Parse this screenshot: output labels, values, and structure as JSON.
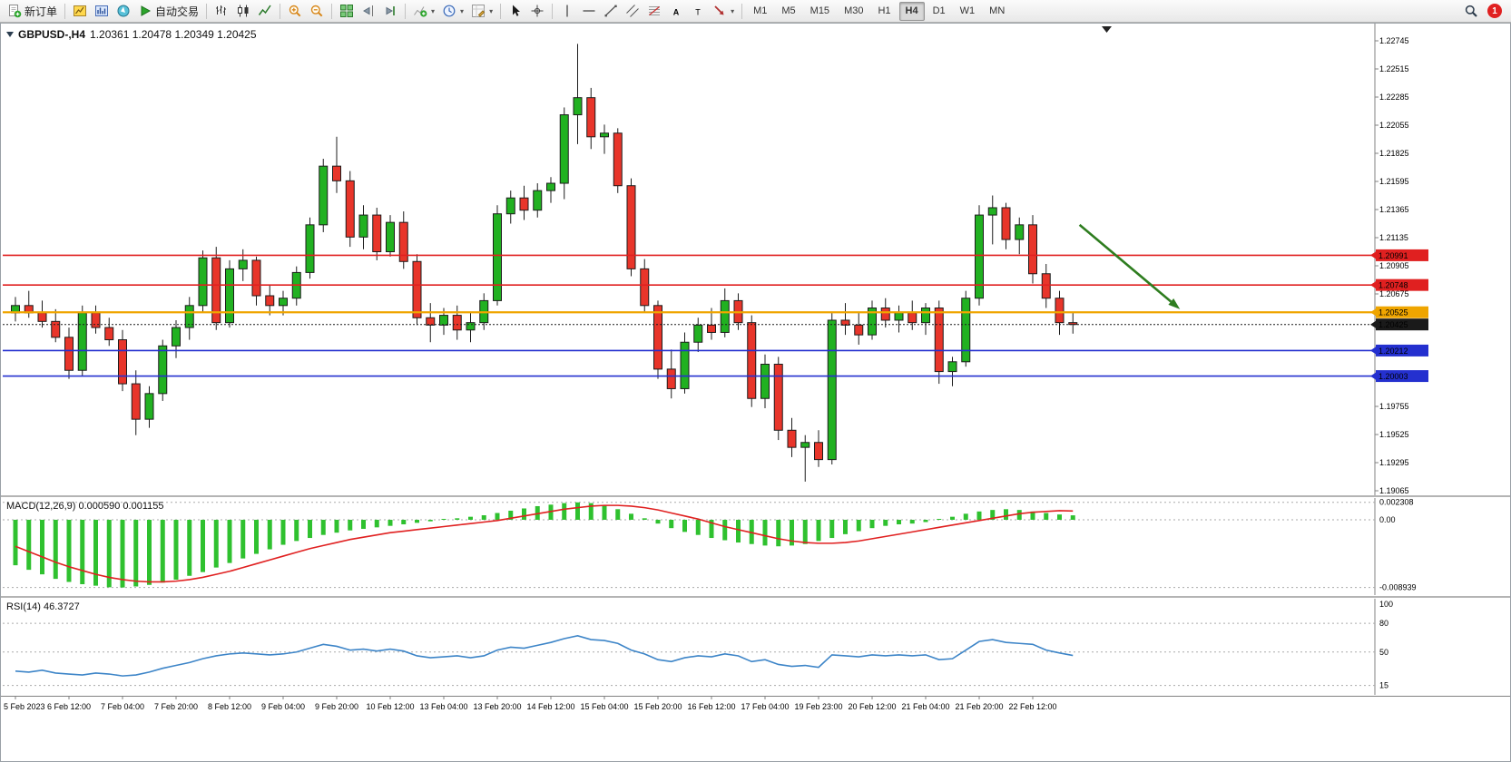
{
  "toolbar": {
    "groups": [
      [
        {
          "name": "new-order-button",
          "icon": "doc-new",
          "label": "新订单"
        }
      ],
      [
        {
          "name": "new-chart-button",
          "icon": "chart-new"
        },
        {
          "name": "profiles-button",
          "icon": "profiles"
        },
        {
          "name": "navigator-button",
          "icon": "navigator"
        },
        {
          "name": "auto-trading-button",
          "icon": "play",
          "label": "自动交易"
        }
      ],
      [
        {
          "name": "bar-chart-button",
          "icon": "bars"
        },
        {
          "name": "candlestick-chart-button",
          "icon": "candles"
        },
        {
          "name": "line-chart-button",
          "icon": "linechart"
        }
      ],
      [
        {
          "name": "zoom-in-button",
          "icon": "zoom-in"
        },
        {
          "name": "zoom-out-button",
          "icon": "zoom-out"
        }
      ],
      [
        {
          "name": "tile-windows-button",
          "icon": "tile"
        },
        {
          "name": "chart-shift-button",
          "icon": "shift"
        },
        {
          "name": "auto-scroll-button",
          "icon": "autoscroll"
        }
      ],
      [
        {
          "name": "indicators-button",
          "icon": "indicators",
          "dropdown": true
        },
        {
          "name": "periods-button",
          "icon": "periods",
          "dropdown": true
        },
        {
          "name": "templates-button",
          "icon": "templates",
          "dropdown": true
        }
      ],
      [
        {
          "name": "cursor-button",
          "icon": "cursor"
        },
        {
          "name": "crosshair-button",
          "icon": "crosshair"
        }
      ],
      [
        {
          "name": "vertical-line-button",
          "icon": "vline"
        },
        {
          "name": "horizontal-line-button",
          "icon": "hline"
        },
        {
          "name": "trendline-button",
          "icon": "trendline"
        },
        {
          "name": "channel-button",
          "icon": "channel"
        },
        {
          "name": "fibonacci-button",
          "icon": "fibo"
        },
        {
          "name": "text-button",
          "icon": "textA"
        },
        {
          "name": "label-button",
          "icon": "labelT"
        },
        {
          "name": "arrows-button",
          "icon": "arrows",
          "dropdown": true
        }
      ]
    ],
    "timeframes": {
      "options": [
        "M1",
        "M5",
        "M15",
        "M30",
        "H1",
        "H4",
        "D1",
        "W1",
        "MN"
      ],
      "active": "H4"
    },
    "right": {
      "notification_count": "1"
    }
  },
  "chart_data": {
    "type": "candlestick",
    "symbol_title": "GBPUSD-,H4",
    "ohlc_text": "1.20361 1.20478 1.20349 1.20425",
    "colors": {
      "up_fill": "#21b121",
      "down_fill": "#e8352a",
      "candle_outline": "#1c1c1c",
      "macd_histogram": "#2fc12f",
      "macd_signal": "#e02020",
      "rsi_line": "#3d85c8",
      "scale_line": "#808080",
      "arrow": "#2e7d1f"
    },
    "price_axis": {
      "max": 1.22745,
      "min": 1.19065,
      "labels": [
        "1.22745",
        "1.22515",
        "1.22285",
        "1.22055",
        "1.21825",
        "1.21595",
        "1.21365",
        "1.21135",
        "1.20905",
        "1.20675",
        "1.20445",
        "1.20215",
        "1.19985",
        "1.19755",
        "1.19525",
        "1.19295",
        "1.19065"
      ]
    },
    "time_axis": {
      "step_bars": 4,
      "labels": [
        "5 Feb 2023",
        "6 Feb 12:00",
        "7 Feb 04:00",
        "7 Feb 20:00",
        "8 Feb 12:00",
        "9 Feb 04:00",
        "9 Feb 20:00",
        "10 Feb 12:00",
        "13 Feb 04:00",
        "13 Feb 20:00",
        "14 Feb 12:00",
        "15 Feb 04:00",
        "15 Feb 20:00",
        "16 Feb 12:00",
        "17 Feb 04:00",
        "19 Feb 23:00",
        "20 Feb 12:00",
        "21 Feb 04:00",
        "21 Feb 20:00",
        "22 Feb 12:00"
      ]
    },
    "hlines": [
      {
        "name": "resistance-line-1",
        "price": 1.20991,
        "label": "1.20991",
        "color": "#e02020",
        "width": 1.6
      },
      {
        "name": "resistance-line-2",
        "price": 1.20748,
        "label": "1.20748",
        "color": "#e02020",
        "width": 1.6
      },
      {
        "name": "pivot-line",
        "price": 1.20525,
        "label": "1.20525",
        "color": "#efa500",
        "width": 2.2
      },
      {
        "name": "bid-price-line",
        "price": 1.20425,
        "label": "1.20425",
        "color": "#1a1a1a",
        "width": 1,
        "dashed": true
      },
      {
        "name": "support-line-1",
        "price": 1.20212,
        "label": "1.20212",
        "color": "#2430cf",
        "width": 1.6
      },
      {
        "name": "support-line-2",
        "price": 1.20003,
        "label": "1.20003",
        "color": "#2430cf",
        "width": 1.6
      }
    ],
    "trend_arrow": {
      "from_bar": 79.5,
      "from_price": 1.2124,
      "to_bar": 87,
      "to_price": 1.2055
    },
    "candles": [
      [
        1.2052,
        1.2065,
        1.2045,
        1.2058
      ],
      [
        1.2058,
        1.207,
        1.2048,
        1.2052
      ],
      [
        1.2052,
        1.2062,
        1.204,
        1.2045
      ],
      [
        1.2045,
        1.2055,
        1.2028,
        1.2032
      ],
      [
        1.2032,
        1.204,
        1.1998,
        1.2005
      ],
      [
        1.2005,
        1.2058,
        1.2,
        1.2052
      ],
      [
        1.2052,
        1.2058,
        1.2035,
        1.204
      ],
      [
        1.204,
        1.2048,
        1.2025,
        1.203
      ],
      [
        1.203,
        1.2038,
        1.1988,
        1.1994
      ],
      [
        1.1994,
        1.2005,
        1.1952,
        1.1965
      ],
      [
        1.1965,
        1.1992,
        1.1958,
        1.1986
      ],
      [
        1.1986,
        1.203,
        1.198,
        1.2025
      ],
      [
        1.2025,
        1.2046,
        1.2015,
        1.204
      ],
      [
        1.204,
        1.2065,
        1.203,
        1.2058
      ],
      [
        1.2058,
        1.2103,
        1.2052,
        1.2097
      ],
      [
        1.2097,
        1.2106,
        1.2038,
        1.2044
      ],
      [
        1.2044,
        1.2095,
        1.204,
        1.2088
      ],
      [
        1.2088,
        1.2104,
        1.2078,
        1.2095
      ],
      [
        1.2095,
        1.2098,
        1.2058,
        1.2066
      ],
      [
        1.2066,
        1.2075,
        1.205,
        1.2058
      ],
      [
        1.2058,
        1.207,
        1.205,
        1.2064
      ],
      [
        1.2064,
        1.209,
        1.2058,
        1.2085
      ],
      [
        1.2085,
        1.213,
        1.208,
        1.2124
      ],
      [
        1.2124,
        1.2178,
        1.2118,
        1.2172
      ],
      [
        1.2172,
        1.2196,
        1.215,
        1.216
      ],
      [
        1.216,
        1.2168,
        1.2106,
        1.2114
      ],
      [
        1.2114,
        1.214,
        1.2104,
        1.2132
      ],
      [
        1.2132,
        1.2138,
        1.2095,
        1.2102
      ],
      [
        1.2102,
        1.2132,
        1.2098,
        1.2126
      ],
      [
        1.2126,
        1.2135,
        1.2088,
        1.2094
      ],
      [
        1.2094,
        1.21,
        1.2042,
        1.2048
      ],
      [
        1.2048,
        1.206,
        1.2028,
        1.2042
      ],
      [
        1.2042,
        1.2056,
        1.2034,
        1.205
      ],
      [
        1.205,
        1.2058,
        1.203,
        1.2038
      ],
      [
        1.2038,
        1.2052,
        1.2028,
        1.2044
      ],
      [
        1.2044,
        1.2068,
        1.2038,
        1.2062
      ],
      [
        1.2062,
        1.214,
        1.2058,
        1.2133
      ],
      [
        1.2133,
        1.2152,
        1.2125,
        1.2146
      ],
      [
        1.2146,
        1.2156,
        1.2128,
        1.2136
      ],
      [
        1.2136,
        1.2158,
        1.213,
        1.2152
      ],
      [
        1.2152,
        1.2163,
        1.2142,
        1.2158
      ],
      [
        1.2158,
        1.222,
        1.2145,
        1.2214
      ],
      [
        1.2214,
        1.2272,
        1.219,
        1.2228
      ],
      [
        1.2228,
        1.2236,
        1.2186,
        1.2196
      ],
      [
        1.2196,
        1.2206,
        1.2182,
        1.2199
      ],
      [
        1.2199,
        1.2203,
        1.215,
        1.2156
      ],
      [
        1.2156,
        1.2162,
        1.2082,
        1.2088
      ],
      [
        1.2088,
        1.2096,
        1.2052,
        1.2058
      ],
      [
        1.2058,
        1.2062,
        1.1998,
        1.2006
      ],
      [
        1.2006,
        1.2022,
        1.1982,
        1.199
      ],
      [
        1.199,
        1.2036,
        1.1986,
        1.2028
      ],
      [
        1.2028,
        1.2048,
        1.202,
        1.2042
      ],
      [
        1.2042,
        1.2056,
        1.203,
        1.2036
      ],
      [
        1.2036,
        1.2072,
        1.2032,
        1.2062
      ],
      [
        1.2062,
        1.2068,
        1.2038,
        1.2044
      ],
      [
        1.2044,
        1.205,
        1.1975,
        1.1982
      ],
      [
        1.1982,
        1.2018,
        1.1974,
        1.201
      ],
      [
        1.201,
        1.2016,
        1.1948,
        1.1956
      ],
      [
        1.1956,
        1.1966,
        1.1934,
        1.1942
      ],
      [
        1.1942,
        1.1952,
        1.1914,
        1.1946
      ],
      [
        1.1946,
        1.1956,
        1.1926,
        1.1932
      ],
      [
        1.1932,
        1.2052,
        1.1928,
        1.2046
      ],
      [
        1.2046,
        1.206,
        1.2034,
        1.2042
      ],
      [
        1.2042,
        1.2052,
        1.2026,
        1.2034
      ],
      [
        1.2034,
        1.2062,
        1.203,
        1.2056
      ],
      [
        1.2056,
        1.2064,
        1.204,
        1.2046
      ],
      [
        1.2046,
        1.2058,
        1.2036,
        1.2052
      ],
      [
        1.2052,
        1.2062,
        1.2038,
        1.2044
      ],
      [
        1.2044,
        1.206,
        1.2034,
        1.2056
      ],
      [
        1.2056,
        1.2062,
        1.1994,
        1.2004
      ],
      [
        1.2004,
        1.2016,
        1.1992,
        1.2012
      ],
      [
        1.2012,
        1.207,
        1.2008,
        1.2064
      ],
      [
        1.2064,
        1.214,
        1.2058,
        1.2132
      ],
      [
        1.2132,
        1.2148,
        1.2108,
        1.2138
      ],
      [
        1.2138,
        1.2142,
        1.2104,
        1.2112
      ],
      [
        1.2112,
        1.213,
        1.21,
        1.2124
      ],
      [
        1.2124,
        1.2132,
        1.2076,
        1.2084
      ],
      [
        1.2084,
        1.2092,
        1.2056,
        1.2064
      ],
      [
        1.2064,
        1.207,
        1.2034,
        1.2044
      ],
      [
        1.2044,
        1.2052,
        1.2035,
        1.20425
      ]
    ],
    "macd": {
      "title": "MACD(12,26,9) 0.000590 0.001155",
      "scale": [
        {
          "label": "0.002308",
          "value": 0.002308
        },
        {
          "label": "0.00",
          "value": 0
        },
        {
          "label": "-0.008939",
          "value": -0.008939
        }
      ],
      "histogram": [
        -0.006,
        -0.0066,
        -0.0072,
        -0.0078,
        -0.0082,
        -0.0085,
        -0.0087,
        -0.0089,
        -0.00894,
        -0.0088,
        -0.0086,
        -0.0083,
        -0.0079,
        -0.0074,
        -0.0069,
        -0.0063,
        -0.0057,
        -0.0051,
        -0.0045,
        -0.0039,
        -0.0033,
        -0.0028,
        -0.0024,
        -0.002,
        -0.0017,
        -0.0014,
        -0.0012,
        -0.001,
        -0.0008,
        -0.0006,
        -0.0004,
        -0.0002,
        0.0,
        0.0002,
        0.0004,
        0.0006,
        0.0009,
        0.0012,
        0.0015,
        0.0018,
        0.002,
        0.0022,
        0.0023,
        0.0022,
        0.0019,
        0.0014,
        0.0008,
        0.0002,
        -0.0005,
        -0.0011,
        -0.0016,
        -0.002,
        -0.0024,
        -0.0027,
        -0.003,
        -0.0032,
        -0.0034,
        -0.0035,
        -0.0034,
        -0.0032,
        -0.0028,
        -0.0024,
        -0.0019,
        -0.0015,
        -0.0011,
        -0.0008,
        -0.0006,
        -0.0005,
        -0.0003,
        0.0,
        0.0004,
        0.0008,
        0.0011,
        0.0013,
        0.0014,
        0.0013,
        0.0011,
        0.0009,
        0.0007,
        0.00059
      ],
      "signal": [
        -0.0035,
        -0.0042,
        -0.0049,
        -0.0056,
        -0.0062,
        -0.0067,
        -0.0072,
        -0.0076,
        -0.0079,
        -0.0081,
        -0.0082,
        -0.0082,
        -0.0081,
        -0.0079,
        -0.0076,
        -0.0072,
        -0.0068,
        -0.0063,
        -0.0058,
        -0.0053,
        -0.0048,
        -0.0043,
        -0.0038,
        -0.0034,
        -0.003,
        -0.0026,
        -0.0023,
        -0.002,
        -0.0017,
        -0.0015,
        -0.0013,
        -0.0011,
        -0.0009,
        -0.0007,
        -0.0005,
        -0.0003,
        -0.0001,
        0.0002,
        0.0005,
        0.0008,
        0.0011,
        0.0014,
        0.0016,
        0.0018,
        0.0019,
        0.0019,
        0.0018,
        0.0016,
        0.0013,
        0.0009,
        0.0005,
        0.0001,
        -0.0004,
        -0.0009,
        -0.0013,
        -0.0017,
        -0.0021,
        -0.0025,
        -0.0028,
        -0.003,
        -0.0031,
        -0.0031,
        -0.003,
        -0.0028,
        -0.0025,
        -0.0022,
        -0.0019,
        -0.0016,
        -0.0013,
        -0.001,
        -0.0007,
        -0.0004,
        -0.0001,
        0.0002,
        0.0005,
        0.0008,
        0.001,
        0.0011,
        0.0012,
        0.001155
      ]
    },
    "rsi": {
      "title": "RSI(14) 46.3727",
      "scale": [
        {
          "label": "100",
          "value": 100
        },
        {
          "label": "80",
          "value": 80
        },
        {
          "label": "50",
          "value": 50
        },
        {
          "label": "15",
          "value": 15
        }
      ],
      "values": [
        30,
        29,
        31,
        28,
        27,
        26,
        28,
        27,
        25,
        26,
        29,
        33,
        36,
        39,
        43,
        46,
        48,
        49,
        48,
        47,
        48,
        50,
        54,
        58,
        56,
        52,
        53,
        51,
        53,
        51,
        46,
        44,
        45,
        46,
        44,
        46,
        52,
        55,
        54,
        57,
        60,
        64,
        67,
        63,
        62,
        59,
        52,
        48,
        42,
        40,
        44,
        46,
        45,
        48,
        46,
        40,
        42,
        37,
        35,
        36,
        34,
        47,
        46,
        45,
        47,
        46,
        47,
        46,
        47,
        42,
        43,
        52,
        61,
        63,
        60,
        59,
        58,
        52,
        49,
        46.3727
      ]
    }
  }
}
